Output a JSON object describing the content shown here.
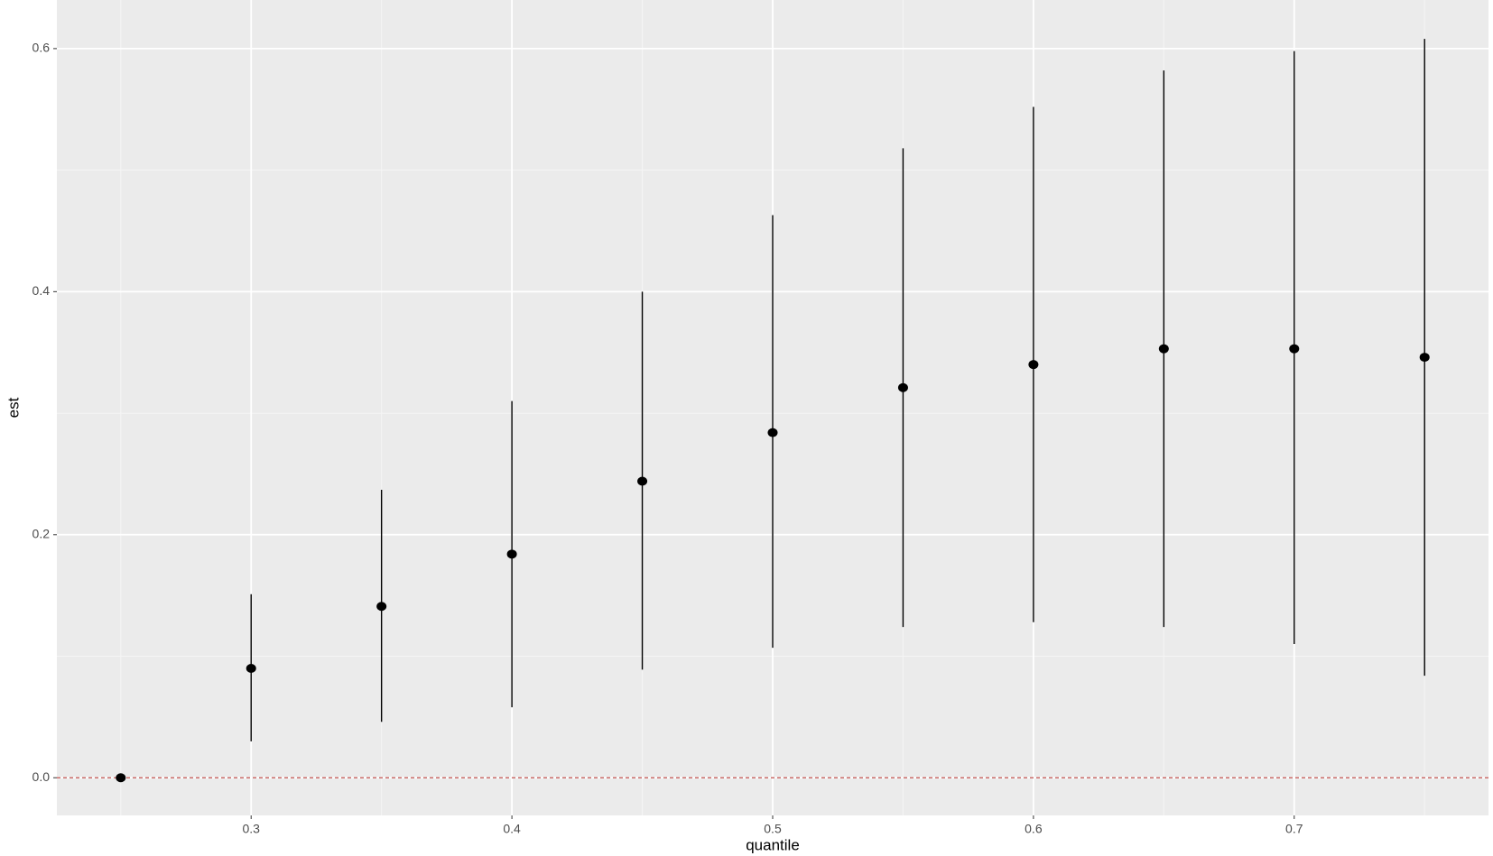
{
  "chart_data": {
    "type": "pointrange",
    "x_label": "quantile",
    "y_label": "est",
    "x": [
      0.25,
      0.3,
      0.35,
      0.4,
      0.45,
      0.5,
      0.55,
      0.6,
      0.65,
      0.7,
      0.75
    ],
    "values": [
      0,
      0.09,
      0.141,
      0.184,
      0.244,
      0.284,
      0.321,
      0.34,
      0.353,
      0.353,
      0.346
    ],
    "lower": [
      0,
      0.03,
      0.046,
      0.058,
      0.089,
      0.107,
      0.124,
      0.128,
      0.124,
      0.11,
      0.084
    ],
    "upper": [
      0,
      0.151,
      0.237,
      0.31,
      0.4,
      0.463,
      0.518,
      0.552,
      0.582,
      0.598,
      0.608
    ],
    "color": "#000000",
    "hline": 0,
    "hline_color": "#c0504d",
    "xlim": [
      0.2255,
      0.7745
    ],
    "ylim": [
      -0.031,
      0.64
    ],
    "xticks": [
      0.3,
      0.4,
      0.5,
      0.6,
      0.7
    ],
    "yticks": [
      {
        "value": 0,
        "label": "0.0"
      },
      0.2,
      0.4,
      0.6
    ],
    "xminor": [
      0.25,
      0.35,
      0.45,
      0.55,
      0.65,
      0.75
    ],
    "yminor": [
      0.1,
      0.3,
      0.5
    ],
    "grid": true
  }
}
